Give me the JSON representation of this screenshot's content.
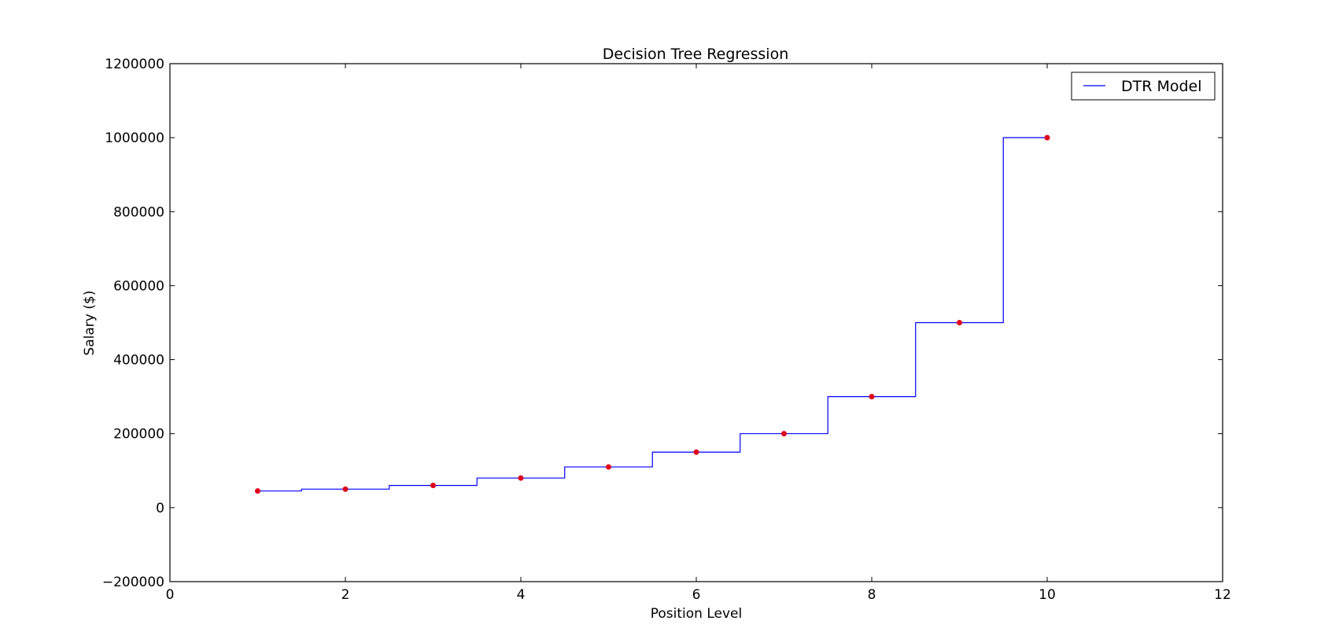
{
  "chart_data": {
    "type": "line",
    "title": "Decision Tree Regression",
    "xlabel": "Position Level",
    "ylabel": "Salary ($)",
    "xlim": [
      0,
      12
    ],
    "ylim": [
      -200000,
      1200000
    ],
    "x_ticks": [
      0,
      2,
      4,
      6,
      8,
      10,
      12
    ],
    "x_tick_labels": [
      "0",
      "2",
      "4",
      "6",
      "8",
      "10",
      "12"
    ],
    "y_ticks": [
      -200000,
      0,
      200000,
      400000,
      600000,
      800000,
      1000000,
      1200000
    ],
    "y_tick_labels": [
      "−200000",
      "0",
      "200000",
      "400000",
      "600000",
      "800000",
      "1000000",
      "1200000"
    ],
    "grid": false,
    "legend": {
      "position": "top-right",
      "entries": [
        "DTR Model"
      ]
    },
    "scatter": {
      "name": "data points",
      "color": "#e0001a",
      "x": [
        1,
        2,
        3,
        4,
        5,
        6,
        7,
        8,
        9,
        10
      ],
      "y": [
        45000,
        50000,
        60000,
        80000,
        110000,
        150000,
        200000,
        300000,
        500000,
        1000000
      ]
    },
    "series": [
      {
        "name": "DTR Model",
        "color": "#0000ff",
        "style": "step",
        "x_start": 1,
        "x_end": 10,
        "breakpoints": [
          1.5,
          2.5,
          3.5,
          4.5,
          5.5,
          6.5,
          7.5,
          8.5,
          9.5
        ],
        "levels": [
          45000,
          50000,
          60000,
          80000,
          110000,
          150000,
          200000,
          300000,
          500000,
          1000000
        ]
      }
    ]
  }
}
